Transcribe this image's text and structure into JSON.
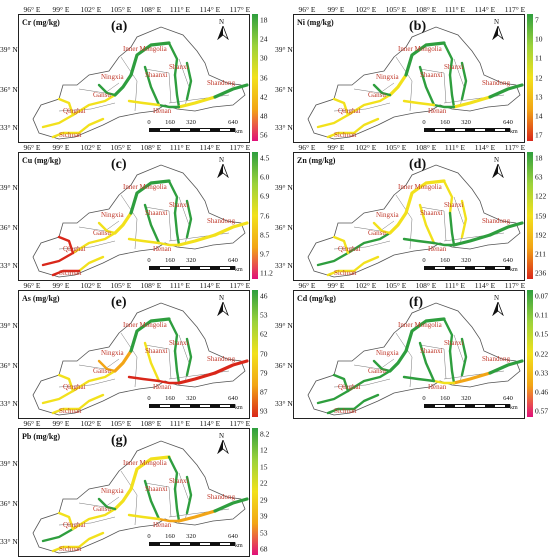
{
  "axes": {
    "lon_labels": [
      "96° E",
      "99° E",
      "102° E",
      "105° E",
      "108° E",
      "111° E",
      "114° E",
      "117° E"
    ],
    "lat_labels": [
      "39° N",
      "36° N",
      "33° N"
    ]
  },
  "provinces": [
    "Inner Mongolia",
    "Ningxia",
    "Shaanxi",
    "Shanxi",
    "Gansu",
    "Qinghai",
    "Henan",
    "Shandong",
    "Sichuan"
  ],
  "north_label": "N",
  "scale": {
    "ticks": [
      "0",
      "160",
      "320",
      "640"
    ],
    "unit": "km"
  },
  "colors": {
    "green": "#2e9e3e",
    "yellow": "#f2e11c",
    "orange": "#f2a516",
    "red": "#d9271a",
    "pink": "#e0107a"
  },
  "panels": [
    {
      "id": "cr",
      "title": "Cr (mg/kg)",
      "letter": "(a)",
      "legend_ticks": [
        "18",
        "24",
        "30",
        "36",
        "42",
        "48",
        "56"
      ],
      "legend_gradient": [
        "#2e9e3e",
        "#9bd23b",
        "#f2e11c",
        "#f2a516",
        "#e0107a"
      ]
    },
    {
      "id": "ni",
      "title": "Ni (mg/kg)",
      "letter": "(b)",
      "legend_ticks": [
        "7",
        "10",
        "11",
        "12",
        "13",
        "14",
        "17"
      ],
      "legend_gradient": [
        "#2e9e3e",
        "#9bd23b",
        "#f2e11c",
        "#f2a516",
        "#d9271a"
      ]
    },
    {
      "id": "cu",
      "title": "Cu (mg/kg)",
      "letter": "(c)",
      "legend_ticks": [
        "4.5",
        "6.0",
        "6.9",
        "7.6",
        "8.5",
        "9.7",
        "11.2"
      ],
      "legend_gradient": [
        "#2e9e3e",
        "#9bd23b",
        "#f2e11c",
        "#f2a516",
        "#e0107a"
      ]
    },
    {
      "id": "zn",
      "title": "Zn (mg/kg)",
      "letter": "(d)",
      "legend_ticks": [
        "18",
        "63",
        "122",
        "159",
        "192",
        "211",
        "236"
      ],
      "legend_gradient": [
        "#2e9e3e",
        "#9bd23b",
        "#f2e11c",
        "#f2a516",
        "#d9271a"
      ]
    },
    {
      "id": "as",
      "title": "As (mg/kg)",
      "letter": "(e)",
      "legend_ticks": [
        "46",
        "53",
        "62",
        "70",
        "79",
        "87",
        "93"
      ],
      "legend_gradient": [
        "#2e9e3e",
        "#9bd23b",
        "#f2e11c",
        "#f2a516",
        "#d9271a"
      ]
    },
    {
      "id": "cd",
      "title": "Cd (mg/kg)",
      "letter": "(f)",
      "legend_ticks": [
        "0.07",
        "0.11",
        "0.15",
        "0.22",
        "0.33",
        "0.46",
        "0.57"
      ],
      "legend_gradient": [
        "#2e9e3e",
        "#9bd23b",
        "#f2e11c",
        "#f2a516",
        "#e0107a"
      ]
    },
    {
      "id": "pb",
      "title": "Pb (mg/kg)",
      "letter": "(g)",
      "legend_ticks": [
        "8.2",
        "12",
        "15",
        "22",
        "29",
        "39",
        "53",
        "68"
      ],
      "legend_gradient": [
        "#2e9e3e",
        "#9bd23b",
        "#f2e11c",
        "#f2a516",
        "#e0107a"
      ]
    }
  ]
}
